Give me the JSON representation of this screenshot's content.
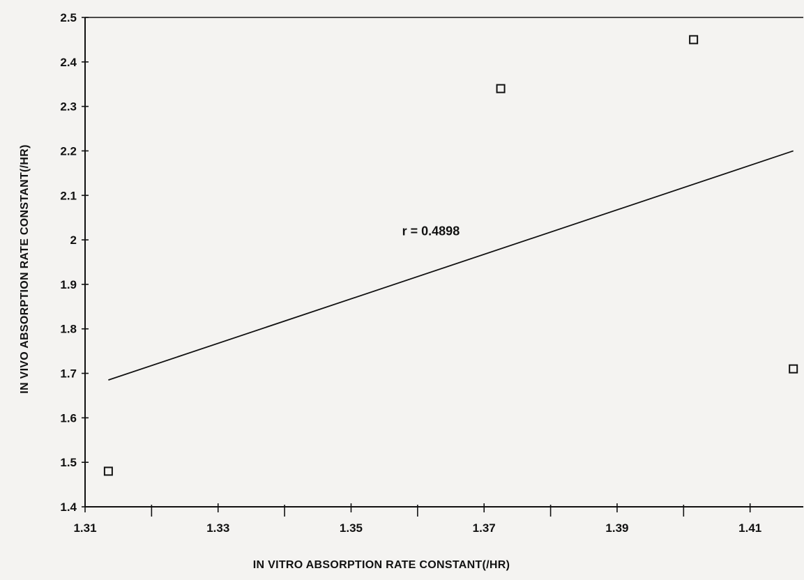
{
  "chart_data": {
    "type": "scatter",
    "title": "",
    "xlabel": "IN VITRO ABSORPTION RATE CONSTANT(/HR)",
    "ylabel": "IN VIVO ABSORPTION RATE CONSTANT(/HR)",
    "xlim": [
      1.31,
      1.418
    ],
    "ylim": [
      1.4,
      2.5
    ],
    "x_ticks": [
      1.31,
      1.33,
      1.35,
      1.37,
      1.39,
      1.41
    ],
    "x_tick_labels": [
      "1.31",
      "1.33",
      "1.35",
      "1.37",
      "1.39",
      "1.41"
    ],
    "y_ticks": [
      1.4,
      1.5,
      1.6,
      1.7,
      1.8,
      1.9,
      2.0,
      2.1,
      2.2,
      2.3,
      2.4,
      2.5
    ],
    "y_tick_labels": [
      "1.4",
      "1.5",
      "1.6",
      "1.7",
      "1.8",
      "1.9",
      "2",
      "2.1",
      "2.2",
      "2.3",
      "2.4",
      "2.5"
    ],
    "grid": false,
    "marker": "open-square",
    "series": [
      {
        "points": [
          {
            "x": 1.3135,
            "y": 1.48
          },
          {
            "x": 1.3725,
            "y": 2.34
          },
          {
            "x": 1.4015,
            "y": 2.45
          },
          {
            "x": 1.4165,
            "y": 1.71
          }
        ]
      }
    ],
    "regression_line": {
      "x": [
        1.3135,
        1.4165
      ],
      "y": [
        1.685,
        2.2
      ]
    },
    "annotations": [
      {
        "text": "r = 0.4898",
        "x": 1.362,
        "y": 2.02
      }
    ]
  }
}
